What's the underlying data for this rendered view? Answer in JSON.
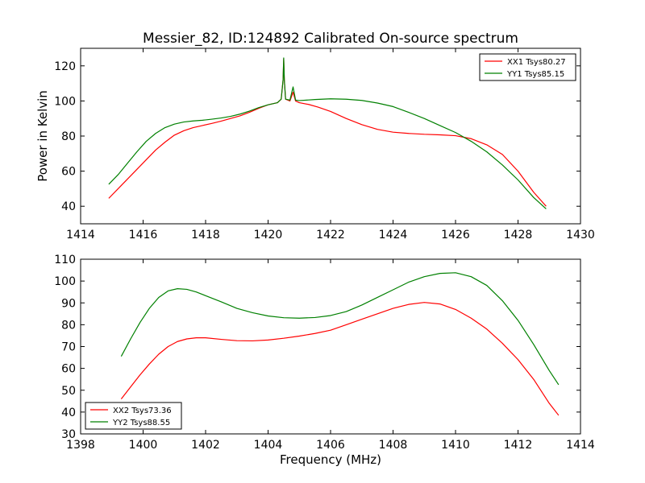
{
  "chart_data": [
    {
      "type": "line",
      "title": "Messier_82, ID:124892 Calibrated On-source spectrum",
      "xlabel": "",
      "ylabel": "Power in Kelvin",
      "xlim": [
        1414,
        1430
      ],
      "ylim": [
        30,
        130
      ],
      "xticks": [
        1414,
        1416,
        1418,
        1420,
        1422,
        1424,
        1426,
        1428,
        1430
      ],
      "yticks": [
        40,
        60,
        80,
        100,
        120
      ],
      "legend_position": "top-right",
      "grid": false,
      "series": [
        {
          "name": "XX1 Tsys80.27",
          "color": "#ff0000",
          "points": [
            [
              1414.9,
              44.5
            ],
            [
              1415.2,
              50
            ],
            [
              1415.5,
              55.5
            ],
            [
              1415.8,
              61
            ],
            [
              1416.1,
              66.5
            ],
            [
              1416.4,
              72
            ],
            [
              1416.7,
              76.5
            ],
            [
              1417.0,
              80.5
            ],
            [
              1417.3,
              83
            ],
            [
              1417.6,
              84.8
            ],
            [
              1417.9,
              86
            ],
            [
              1418.2,
              87.2
            ],
            [
              1418.5,
              88.5
            ],
            [
              1418.8,
              90
            ],
            [
              1419.1,
              91.5
            ],
            [
              1419.4,
              93.5
            ],
            [
              1419.7,
              95.8
            ],
            [
              1420.0,
              97.8
            ],
            [
              1420.3,
              99
            ],
            [
              1420.42,
              101
            ],
            [
              1420.48,
              112
            ],
            [
              1420.5,
              124
            ],
            [
              1420.52,
              112
            ],
            [
              1420.56,
              101
            ],
            [
              1420.7,
              100
            ],
            [
              1420.8,
              105
            ],
            [
              1420.88,
              100
            ],
            [
              1421.0,
              99
            ],
            [
              1421.3,
              98
            ],
            [
              1421.6,
              96.5
            ],
            [
              1422.0,
              94
            ],
            [
              1422.5,
              90
            ],
            [
              1423.0,
              86.5
            ],
            [
              1423.5,
              83.8
            ],
            [
              1424.0,
              82.2
            ],
            [
              1424.5,
              81.5
            ],
            [
              1425.0,
              81
            ],
            [
              1425.5,
              80.7
            ],
            [
              1426.0,
              80.2
            ],
            [
              1426.5,
              78.5
            ],
            [
              1427.0,
              75
            ],
            [
              1427.5,
              69.5
            ],
            [
              1428.0,
              60
            ],
            [
              1428.5,
              48
            ],
            [
              1428.9,
              40
            ]
          ]
        },
        {
          "name": "YY1 Tsys85.15",
          "color": "#008000",
          "points": [
            [
              1414.9,
              52.5
            ],
            [
              1415.2,
              58
            ],
            [
              1415.5,
              64.5
            ],
            [
              1415.8,
              71
            ],
            [
              1416.1,
              77
            ],
            [
              1416.4,
              81.5
            ],
            [
              1416.7,
              84.8
            ],
            [
              1417.0,
              86.8
            ],
            [
              1417.3,
              88
            ],
            [
              1417.6,
              88.6
            ],
            [
              1417.9,
              89
            ],
            [
              1418.2,
              89.6
            ],
            [
              1418.5,
              90.3
            ],
            [
              1418.8,
              91.2
            ],
            [
              1419.1,
              92.5
            ],
            [
              1419.4,
              94.2
            ],
            [
              1419.7,
              96.2
            ],
            [
              1420.0,
              97.8
            ],
            [
              1420.3,
              99
            ],
            [
              1420.42,
              101
            ],
            [
              1420.48,
              112
            ],
            [
              1420.5,
              124.5
            ],
            [
              1420.52,
              112
            ],
            [
              1420.56,
              101
            ],
            [
              1420.7,
              100.5
            ],
            [
              1420.8,
              108
            ],
            [
              1420.88,
              100.5
            ],
            [
              1421.0,
              100.2
            ],
            [
              1421.5,
              100.8
            ],
            [
              1422.0,
              101.2
            ],
            [
              1422.5,
              101
            ],
            [
              1423.0,
              100.3
            ],
            [
              1423.5,
              98.8
            ],
            [
              1424.0,
              96.8
            ],
            [
              1424.5,
              93.5
            ],
            [
              1425.0,
              90
            ],
            [
              1425.5,
              86
            ],
            [
              1426.0,
              82
            ],
            [
              1426.5,
              77
            ],
            [
              1427.0,
              71
            ],
            [
              1427.5,
              63.5
            ],
            [
              1428.0,
              55
            ],
            [
              1428.5,
              45
            ],
            [
              1428.9,
              38.5
            ]
          ]
        }
      ]
    },
    {
      "type": "line",
      "title": "",
      "xlabel": "Frequency (MHz)",
      "ylabel": "",
      "xlim": [
        1398,
        1414
      ],
      "ylim": [
        30,
        110
      ],
      "xticks": [
        1398,
        1400,
        1402,
        1404,
        1406,
        1408,
        1410,
        1412,
        1414
      ],
      "yticks": [
        30,
        40,
        50,
        60,
        70,
        80,
        90,
        100,
        110
      ],
      "legend_position": "bottom-left",
      "grid": false,
      "series": [
        {
          "name": "XX2 Tsys73.36",
          "color": "#ff0000",
          "points": [
            [
              1399.3,
              46
            ],
            [
              1399.6,
              51.5
            ],
            [
              1399.9,
              57
            ],
            [
              1400.2,
              62
            ],
            [
              1400.5,
              66.5
            ],
            [
              1400.8,
              70
            ],
            [
              1401.1,
              72.3
            ],
            [
              1401.4,
              73.5
            ],
            [
              1401.7,
              74
            ],
            [
              1402.0,
              74
            ],
            [
              1402.5,
              73.3
            ],
            [
              1403.0,
              72.7
            ],
            [
              1403.5,
              72.6
            ],
            [
              1404.0,
              73
            ],
            [
              1404.5,
              73.8
            ],
            [
              1405.0,
              74.8
            ],
            [
              1405.5,
              76
            ],
            [
              1406.0,
              77.5
            ],
            [
              1406.5,
              80
            ],
            [
              1407.0,
              82.5
            ],
            [
              1407.5,
              85
            ],
            [
              1408.0,
              87.5
            ],
            [
              1408.5,
              89.3
            ],
            [
              1409.0,
              90.2
            ],
            [
              1409.5,
              89.5
            ],
            [
              1410.0,
              87
            ],
            [
              1410.5,
              83
            ],
            [
              1411.0,
              78
            ],
            [
              1411.5,
              71.5
            ],
            [
              1412.0,
              64
            ],
            [
              1412.5,
              55
            ],
            [
              1413.0,
              44
            ],
            [
              1413.3,
              38.5
            ]
          ]
        },
        {
          "name": "YY2 Tsys88.55",
          "color": "#008000",
          "points": [
            [
              1399.3,
              65.5
            ],
            [
              1399.6,
              73.5
            ],
            [
              1399.9,
              81
            ],
            [
              1400.2,
              87.5
            ],
            [
              1400.5,
              92.5
            ],
            [
              1400.8,
              95.5
            ],
            [
              1401.1,
              96.5
            ],
            [
              1401.4,
              96.2
            ],
            [
              1401.7,
              95
            ],
            [
              1402.0,
              93.3
            ],
            [
              1402.5,
              90.5
            ],
            [
              1403.0,
              87.5
            ],
            [
              1403.5,
              85.5
            ],
            [
              1404.0,
              84
            ],
            [
              1404.5,
              83.2
            ],
            [
              1405.0,
              83
            ],
            [
              1405.5,
              83.3
            ],
            [
              1406.0,
              84.2
            ],
            [
              1406.5,
              86
            ],
            [
              1407.0,
              89
            ],
            [
              1407.5,
              92.5
            ],
            [
              1408.0,
              96
            ],
            [
              1408.5,
              99.5
            ],
            [
              1409.0,
              102
            ],
            [
              1409.5,
              103.5
            ],
            [
              1410.0,
              103.8
            ],
            [
              1410.5,
              102
            ],
            [
              1411.0,
              98
            ],
            [
              1411.5,
              91
            ],
            [
              1412.0,
              82
            ],
            [
              1412.5,
              71
            ],
            [
              1413.0,
              59
            ],
            [
              1413.3,
              52.5
            ]
          ]
        }
      ]
    }
  ]
}
